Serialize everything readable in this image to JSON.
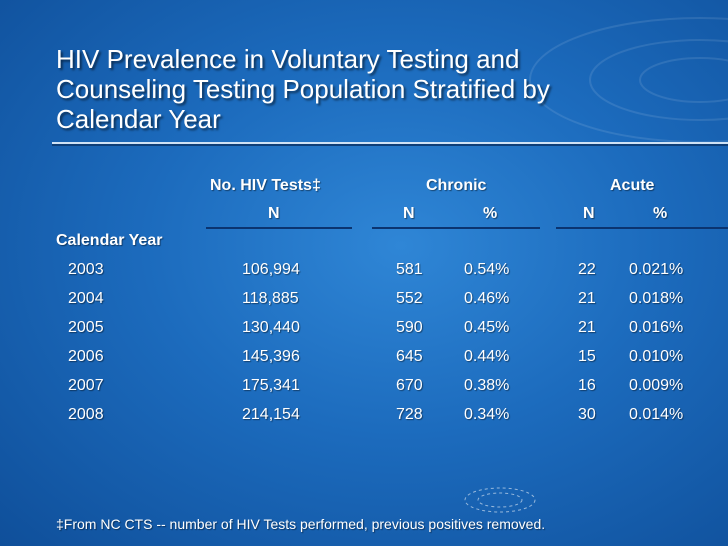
{
  "title": "HIV Prevalence in Voluntary Testing and Counseling Testing Population Stratified by Calendar Year",
  "table": {
    "group_headers": {
      "tests": "No. HIV Tests‡",
      "chronic": "Chronic",
      "acute": "Acute"
    },
    "sub_headers": {
      "tests_n": "N",
      "chronic_n": "N",
      "chronic_pct": "%",
      "acute_n": "N",
      "acute_pct": "%"
    },
    "row_header": "Calendar Year",
    "rows": [
      {
        "year": "2003",
        "tests": "106,994",
        "chronic_n": "581",
        "chronic_pct": "0.54%",
        "acute_n": "22",
        "acute_pct": "0.021%"
      },
      {
        "year": "2004",
        "tests": "118,885",
        "chronic_n": "552",
        "chronic_pct": "0.46%",
        "acute_n": "21",
        "acute_pct": "0.018%"
      },
      {
        "year": "2005",
        "tests": "130,440",
        "chronic_n": "590",
        "chronic_pct": "0.45%",
        "acute_n": "21",
        "acute_pct": "0.016%"
      },
      {
        "year": "2006",
        "tests": "145,396",
        "chronic_n": "645",
        "chronic_pct": "0.44%",
        "acute_n": "15",
        "acute_pct": "0.010%"
      },
      {
        "year": "2007",
        "tests": "175,341",
        "chronic_n": "670",
        "chronic_pct": "0.38%",
        "acute_n": "16",
        "acute_pct": "0.009%"
      },
      {
        "year": "2008",
        "tests": "214,154",
        "chronic_n": "728",
        "chronic_pct": "0.34%",
        "acute_n": "30",
        "acute_pct": "0.014%"
      }
    ]
  },
  "footnote": "‡From NC CTS -- number of HIV Tests performed, previous positives removed.",
  "colors": {
    "background": "#1c6bbd",
    "text": "#ffffff",
    "rule_dark": "#0d3e78",
    "rule_light": "#cfe2f5"
  }
}
